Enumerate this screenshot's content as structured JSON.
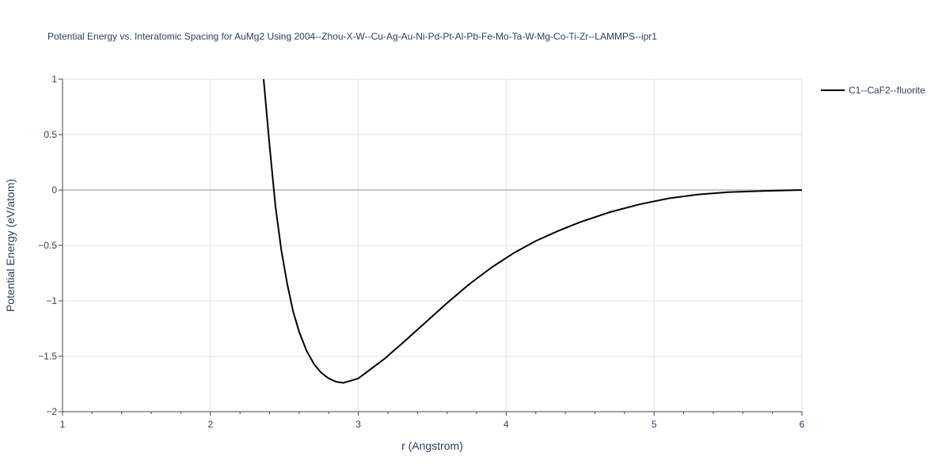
{
  "chart_data": {
    "type": "line",
    "title": "Potential Energy vs. Interatomic Spacing for AuMg2 Using 2004--Zhou-X-W--Cu-Ag-Au-Ni-Pd-Pt-Al-Pb-Fe-Mo-Ta-W-Mg-Co-Ti-Zr--LAMMPS--ipr1",
    "xlabel": "r (Angstrom)",
    "ylabel": "Potential Energy (eV/atom)",
    "xlim": [
      1,
      6
    ],
    "ylim": [
      -2,
      1
    ],
    "x_ticks": [
      "1",
      "2",
      "3",
      "4",
      "5",
      "6"
    ],
    "y_ticks": [
      "1",
      "0.5",
      "0",
      "−0.5",
      "−1",
      "−1.5",
      "−2"
    ],
    "grid": true,
    "legend_position": "top-right",
    "series": [
      {
        "name": "C1--CaF2--fluorite",
        "color": "#000000",
        "x": [
          2.36,
          2.4,
          2.44,
          2.48,
          2.52,
          2.56,
          2.6,
          2.65,
          2.7,
          2.75,
          2.8,
          2.85,
          2.9,
          2.95,
          3.0,
          3.08,
          3.18,
          3.3,
          3.45,
          3.6,
          3.75,
          3.9,
          4.05,
          4.2,
          4.35,
          4.5,
          4.7,
          4.9,
          5.1,
          5.3,
          5.5,
          5.75,
          6.0
        ],
        "y": [
          1.0,
          0.4,
          -0.15,
          -0.55,
          -0.85,
          -1.1,
          -1.28,
          -1.45,
          -1.57,
          -1.65,
          -1.7,
          -1.73,
          -1.74,
          -1.72,
          -1.7,
          -1.62,
          -1.52,
          -1.38,
          -1.2,
          -1.02,
          -0.85,
          -0.7,
          -0.57,
          -0.46,
          -0.37,
          -0.29,
          -0.2,
          -0.13,
          -0.075,
          -0.04,
          -0.02,
          -0.008,
          0.0
        ]
      }
    ]
  }
}
